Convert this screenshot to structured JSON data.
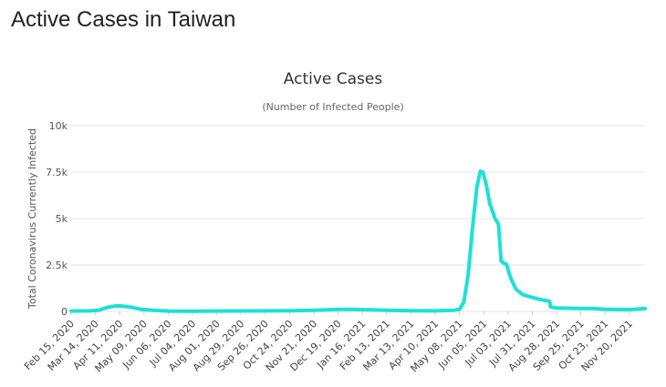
{
  "page": {
    "heading": "Active Cases in Taiwan"
  },
  "chart_data": {
    "type": "line",
    "title": "Active Cases",
    "subtitle": "(Number of Infected People)",
    "xlabel": "",
    "ylabel": "Total Coronavirus Currently Infected",
    "ylim": [
      0,
      10000
    ],
    "yticks": [
      {
        "value": 0,
        "label": "0"
      },
      {
        "value": 2500,
        "label": "2.5k"
      },
      {
        "value": 5000,
        "label": "5k"
      },
      {
        "value": 7500,
        "label": "7.5k"
      },
      {
        "value": 10000,
        "label": "10k"
      }
    ],
    "xlim": [
      "2020-02-15",
      "2021-12-08"
    ],
    "xticks": [
      {
        "date": "2020-02-15",
        "label": "Feb 15, 2020"
      },
      {
        "date": "2020-03-14",
        "label": "Mar 14, 2020"
      },
      {
        "date": "2020-04-11",
        "label": "Apr 11, 2020"
      },
      {
        "date": "2020-05-09",
        "label": "May 09, 2020"
      },
      {
        "date": "2020-06-06",
        "label": "Jun 06, 2020"
      },
      {
        "date": "2020-07-04",
        "label": "Jul 04, 2020"
      },
      {
        "date": "2020-08-01",
        "label": "Aug 01, 2020"
      },
      {
        "date": "2020-08-29",
        "label": "Aug 29, 2020"
      },
      {
        "date": "2020-09-26",
        "label": "Sep 26, 2020"
      },
      {
        "date": "2020-10-24",
        "label": "Oct 24, 2020"
      },
      {
        "date": "2020-11-21",
        "label": "Nov 21, 2020"
      },
      {
        "date": "2020-12-19",
        "label": "Dec 19, 2020"
      },
      {
        "date": "2021-01-16",
        "label": "Jan 16, 2021"
      },
      {
        "date": "2021-02-13",
        "label": "Feb 13, 2021"
      },
      {
        "date": "2021-03-13",
        "label": "Mar 13, 2021"
      },
      {
        "date": "2021-04-10",
        "label": "Apr 10, 2021"
      },
      {
        "date": "2021-05-08",
        "label": "May 08, 2021"
      },
      {
        "date": "2021-06-05",
        "label": "Jun 05, 2021"
      },
      {
        "date": "2021-07-03",
        "label": "Jul 03, 2021"
      },
      {
        "date": "2021-07-31",
        "label": "Jul 31, 2021"
      },
      {
        "date": "2021-08-28",
        "label": "Aug 28, 2021"
      },
      {
        "date": "2021-09-25",
        "label": "Sep 25, 2021"
      },
      {
        "date": "2021-10-23",
        "label": "Oct 23, 2021"
      },
      {
        "date": "2021-11-20",
        "label": "Nov 20, 2021"
      }
    ],
    "grid": true,
    "legend": "none",
    "line_color": "#1de1d6",
    "grid_color": "#e6e6e6",
    "series": [
      {
        "points": [
          {
            "x": "2020-02-15",
            "y": 20
          },
          {
            "x": "2020-03-07",
            "y": 30
          },
          {
            "x": "2020-03-18",
            "y": 60
          },
          {
            "x": "2020-03-25",
            "y": 180
          },
          {
            "x": "2020-04-01",
            "y": 260
          },
          {
            "x": "2020-04-08",
            "y": 300
          },
          {
            "x": "2020-04-15",
            "y": 280
          },
          {
            "x": "2020-04-25",
            "y": 220
          },
          {
            "x": "2020-05-05",
            "y": 120
          },
          {
            "x": "2020-05-20",
            "y": 60
          },
          {
            "x": "2020-06-06",
            "y": 20
          },
          {
            "x": "2020-07-04",
            "y": 10
          },
          {
            "x": "2020-08-01",
            "y": 20
          },
          {
            "x": "2020-08-29",
            "y": 25
          },
          {
            "x": "2020-09-26",
            "y": 30
          },
          {
            "x": "2020-10-24",
            "y": 40
          },
          {
            "x": "2020-11-21",
            "y": 60
          },
          {
            "x": "2020-12-05",
            "y": 90
          },
          {
            "x": "2020-12-19",
            "y": 110
          },
          {
            "x": "2021-01-01",
            "y": 110
          },
          {
            "x": "2021-01-16",
            "y": 100
          },
          {
            "x": "2021-02-13",
            "y": 60
          },
          {
            "x": "2021-03-13",
            "y": 40
          },
          {
            "x": "2021-04-10",
            "y": 30
          },
          {
            "x": "2021-05-01",
            "y": 60
          },
          {
            "x": "2021-05-08",
            "y": 120
          },
          {
            "x": "2021-05-13",
            "y": 500
          },
          {
            "x": "2021-05-18",
            "y": 2000
          },
          {
            "x": "2021-05-23",
            "y": 4500
          },
          {
            "x": "2021-05-28",
            "y": 6700
          },
          {
            "x": "2021-06-01",
            "y": 7550
          },
          {
            "x": "2021-06-04",
            "y": 7500
          },
          {
            "x": "2021-06-08",
            "y": 6800
          },
          {
            "x": "2021-06-12",
            "y": 5800
          },
          {
            "x": "2021-06-18",
            "y": 5000
          },
          {
            "x": "2021-06-22",
            "y": 4700
          },
          {
            "x": "2021-06-25",
            "y": 2700
          },
          {
            "x": "2021-06-28",
            "y": 2600
          },
          {
            "x": "2021-07-01",
            "y": 2550
          },
          {
            "x": "2021-07-06",
            "y": 1800
          },
          {
            "x": "2021-07-12",
            "y": 1200
          },
          {
            "x": "2021-07-20",
            "y": 900
          },
          {
            "x": "2021-07-31",
            "y": 750
          },
          {
            "x": "2021-08-08",
            "y": 650
          },
          {
            "x": "2021-08-20",
            "y": 550
          },
          {
            "x": "2021-08-21",
            "y": 250
          },
          {
            "x": "2021-08-28",
            "y": 180
          },
          {
            "x": "2021-09-25",
            "y": 160
          },
          {
            "x": "2021-10-10",
            "y": 150
          },
          {
            "x": "2021-10-23",
            "y": 120
          },
          {
            "x": "2021-11-20",
            "y": 100
          },
          {
            "x": "2021-12-08",
            "y": 150
          }
        ]
      }
    ]
  }
}
